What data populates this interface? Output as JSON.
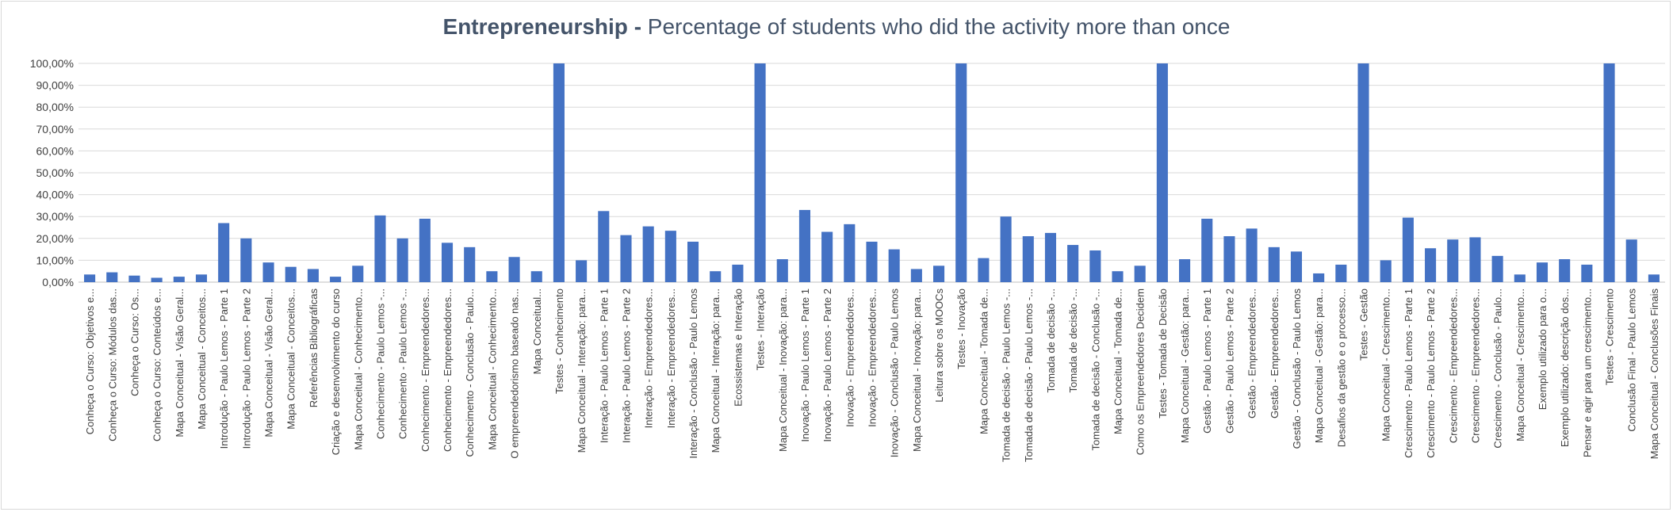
{
  "chart_data": {
    "type": "bar",
    "title_bold": "Entrepreneurship -",
    "title_rest": "Percentage of students who did the activity more than once",
    "xlabel": "",
    "ylabel": "",
    "ylim": [
      0,
      100
    ],
    "y_ticks": [
      "0,00%",
      "10,00%",
      "20,00%",
      "30,00%",
      "40,00%",
      "50,00%",
      "60,00%",
      "70,00%",
      "80,00%",
      "90,00%",
      "100,00%"
    ],
    "grid": true,
    "legend": "none",
    "bar_color": "#4472c4",
    "categories": [
      "Conheça o Curso: Objetivos e...",
      "Conheça o Curso: Módulos das...",
      "Conheça o Curso: Os...",
      "Conheça o Curso: Conteúdos e...",
      "Mapa Conceitual - Visão Geral...",
      "Mapa Conceitual - Conceitos...",
      "Introdução - Paulo Lemos - Parte 1",
      "Introdução - Paulo Lemos - Parte 2",
      "Mapa Conceitual - Visão Geral...",
      "Mapa Conceitual - Conceitos...",
      "Referências Bibliográficas",
      "Criação e desenvolvimento do curso",
      "Mapa Conceitual - Conhecimento...",
      "Conhecimento - Paulo Lemos -...",
      "Conhecimento - Paulo Lemos -...",
      "Conhecimento - Empreendedores...",
      "Conhecimento - Empreendedores...",
      "Conhecimento - Conclusão - Paulo...",
      "Mapa Conceitual - Conhecimento...",
      "O empreendedorismo baseado nas...",
      "Mapa Conceitual...",
      "Testes - Conhecimento",
      "Mapa Conceitual - Interação: para...",
      "Interação - Paulo Lemos - Parte 1",
      "Interação - Paulo Lemos - Parte 2",
      "Interação - Empreendedores...",
      "Interação - Empreendedores...",
      "Interação - Conclusão - Paulo Lemos",
      "Mapa Conceitual - Interação: para...",
      "Ecossistemas e Interação",
      "Testes - Interação",
      "Mapa Conceitual - Inovação: para...",
      "Inovação - Paulo Lemos - Parte 1",
      "Inovação - Paulo Lemos - Parte 2",
      "Inovação - Empreendedores...",
      "Inovação - Empreendedores...",
      "Inovação - Conclusão - Paulo Lemos",
      "Mapa Conceitual - Inovação: para...",
      "Leitura sobre os MOOCs",
      "Testes - Inovação",
      "Mapa Conceitual - Tomada de...",
      "Tomada de decisão - Paulo Lemos -...",
      "Tomada de decisão - Paulo Lemos -...",
      "Tomada de decisão -...",
      "Tomada de decisão -...",
      "Tomada de decisão - Conclusão -...",
      "Mapa Conceitual - Tomada de...",
      "Como os Empreendedores Decidem",
      "Testes - Tomada de Decisão",
      "Mapa Conceitual - Gestão: para...",
      "Gestão - Paulo Lemos - Parte 1",
      "Gestão - Paulo Lemos - Parte 2",
      "Gestão - Empreendedores...",
      "Gestão - Empreendedores...",
      "Gestão - Conclusão - Paulo Lemos",
      "Mapa Conceitual - Gestão: para...",
      "Desafios da gestão e o processo...",
      "Testes - Gestão",
      "Mapa Conceitual - Crescimento...",
      "Crescimento - Paulo Lemos - Parte 1",
      "Crescimento - Paulo Lemos - Parte 2",
      "Crescimento - Empreendedores...",
      "Crescimento - Empreendedores...",
      "Crescimento - Conclusão - Paulo...",
      "Mapa Conceitual - Crescimento...",
      "Exemplo utilizado para o...",
      "Exemplo utilizado: descrição dos...",
      "Pensar e agir para um crescimento...",
      "Testes - Crescimento",
      "Conclusão Final - Paulo Lemos",
      "Mapa Conceitual - Conclusões Finais"
    ],
    "values": [
      3.5,
      4.5,
      3.0,
      2.0,
      2.5,
      3.5,
      27.0,
      20.0,
      9.0,
      7.0,
      6.0,
      2.5,
      7.5,
      30.5,
      20.0,
      29.0,
      18.0,
      16.0,
      5.0,
      11.5,
      5.0,
      100,
      10.0,
      32.5,
      21.5,
      25.5,
      23.5,
      18.5,
      5.0,
      8.0,
      100,
      10.5,
      33.0,
      23.0,
      26.5,
      18.5,
      15.0,
      6.0,
      7.5,
      100,
      11.0,
      30.0,
      21.0,
      22.5,
      17.0,
      14.5,
      5.0,
      7.5,
      100,
      10.5,
      29.0,
      21.0,
      24.5,
      16.0,
      14.0,
      4.0,
      8.0,
      100,
      10.0,
      29.5,
      15.5,
      19.5,
      20.5,
      12.0,
      3.5,
      9.0,
      10.5,
      8.0,
      100,
      19.5,
      3.5
    ]
  }
}
